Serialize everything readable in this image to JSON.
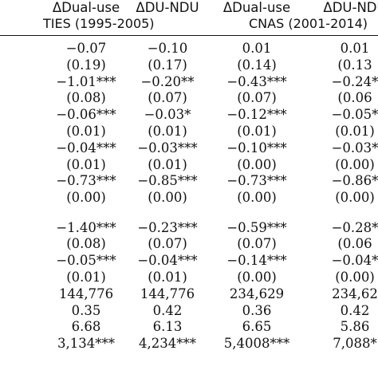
{
  "headers": {
    "columns": [
      "ΔDual-use",
      "ΔDU-NDU",
      "ΔDual-use",
      "ΔDU-NDU"
    ],
    "periods": [
      "TIES (1995-2005)",
      "CNAS (2001-2014)"
    ]
  },
  "rows": [
    [
      "−0.07",
      "−0.10",
      "0.01",
      "0.01"
    ],
    [
      "(0.19)",
      "(0.17)",
      "(0.14)",
      "(0.13"
    ],
    [
      "−1.01***",
      "−0.20**",
      "−0.43***",
      "−0.24*"
    ],
    [
      "(0.08)",
      "(0.07)",
      "(0.07)",
      "(0.06"
    ],
    [
      "−0.06***",
      "−0.03*",
      "−0.12***",
      "−0.05*"
    ],
    [
      "(0.01)",
      "(0.01)",
      "(0.01)",
      "(0.01)"
    ],
    [
      "−0.04***",
      "−0.03***",
      "−0.10***",
      "−0.03*"
    ],
    [
      "(0.01)",
      "(0.01)",
      "(0.00)",
      "(0.00)"
    ],
    [
      "−0.73***",
      "−0.85***",
      "−0.73***",
      "−0.86*"
    ],
    [
      "(0.00)",
      "(0.00)",
      "(0.00)",
      "(0.00)"
    ],
    [
      "−1.40***",
      "−0.23***",
      "−0.59***",
      "−0.28*"
    ],
    [
      "(0.08)",
      "(0.07)",
      "(0.07)",
      "(0.06"
    ],
    [
      "−0.05***",
      "−0.04***",
      "−0.14***",
      "−0.04*"
    ],
    [
      "(0.01)",
      "(0.01)",
      "(0.00)",
      "(0.00)"
    ],
    [
      "144,776",
      "144,776",
      "234,629",
      "234,62"
    ],
    [
      "0.35",
      "0.42",
      "0.36",
      "0.42"
    ],
    [
      "6.68",
      "6.13",
      "6.65",
      "5.86"
    ],
    [
      "3,134***",
      "4,234***",
      "5,4008***",
      "7,088*"
    ]
  ]
}
